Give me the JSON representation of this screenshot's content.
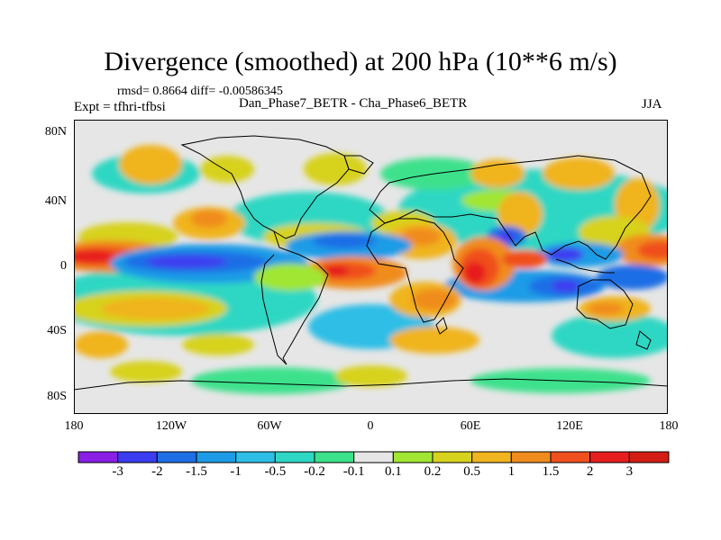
{
  "title": "Divergence (smoothed) at 200 hPa (10**6 m/s)",
  "stats": "rmsd= 0.8664 diff= -0.00586345",
  "expt": "Expt = tfhri-tfbsi",
  "subtitle": "Dan_Phase7_BETR - Cha_Phase6_BETR",
  "season": "JJA",
  "lat_labels": [
    "80N",
    "40N",
    "0",
    "40S",
    "80S"
  ],
  "lon_labels": [
    "180",
    "120W",
    "60W",
    "0",
    "60E",
    "120E",
    "180"
  ],
  "colorbar": {
    "labels": [
      "-3",
      "-2",
      "-1.5",
      "-1",
      "-0.5",
      "-0.2",
      "-0.1",
      "0.1",
      "0.2",
      "0.5",
      "1",
      "1.5",
      "2",
      "3"
    ],
    "colors": [
      "#8a1fe6",
      "#3c3cf0",
      "#1e6ee6",
      "#1e9be6",
      "#2dbee6",
      "#2dd7c3",
      "#3ce18c",
      "#e6e6e6",
      "#a0e632",
      "#d7d21e",
      "#f0b41e",
      "#f08c1e",
      "#f0501e",
      "#e61e1e",
      "#d21e14"
    ]
  }
}
